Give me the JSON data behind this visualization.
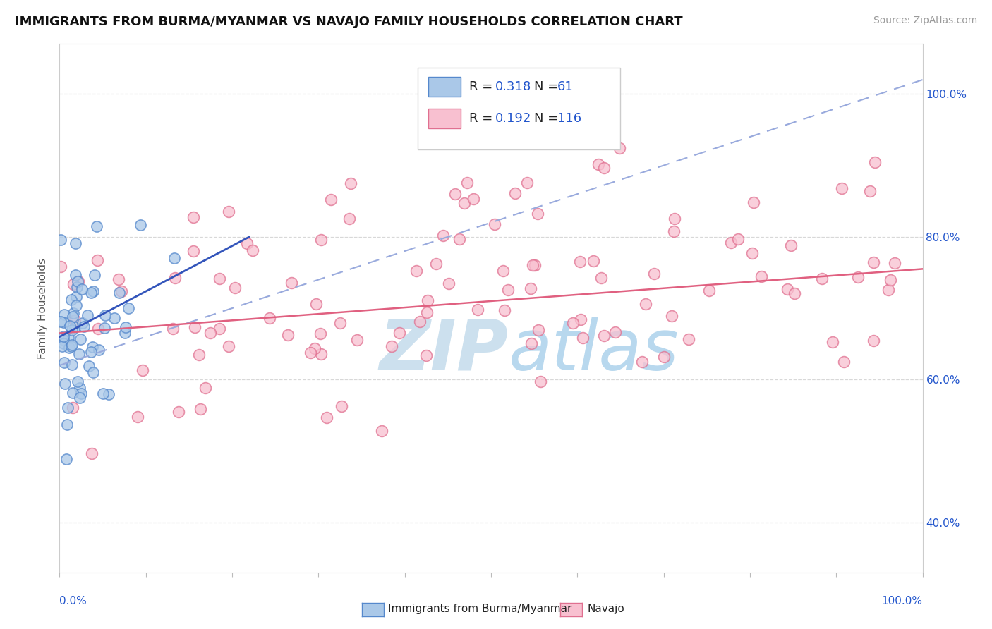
{
  "title": "IMMIGRANTS FROM BURMA/MYANMAR VS NAVAJO FAMILY HOUSEHOLDS CORRELATION CHART",
  "source": "Source: ZipAtlas.com",
  "ylabel": "Family Households",
  "y_tick_labels": [
    "40.0%",
    "60.0%",
    "80.0%",
    "100.0%"
  ],
  "y_tick_values": [
    0.4,
    0.6,
    0.8,
    1.0
  ],
  "blue_R": 0.318,
  "blue_N": 61,
  "pink_R": 0.192,
  "pink_N": 116,
  "xlim": [
    0.0,
    1.0
  ],
  "ylim": [
    0.33,
    1.07
  ],
  "background_color": "#ffffff",
  "grid_color": "#d8d8d8",
  "scatter_size_blue": 120,
  "scatter_size_pink": 130,
  "blue_color": "#aac8e8",
  "blue_edge": "#5588cc",
  "pink_color": "#f8c0d0",
  "pink_edge": "#e07090",
  "blue_line_color": "#3355bb",
  "blue_dash_color": "#99aadd",
  "pink_line_color": "#e06080",
  "watermark_zip": "ZIP",
  "watermark_atlas": "atlas",
  "watermark_color": "#cce0ee",
  "legend_color": "#2255cc",
  "title_fontsize": 13,
  "source_fontsize": 10,
  "tick_label_fontsize": 11,
  "legend_fontsize": 13
}
